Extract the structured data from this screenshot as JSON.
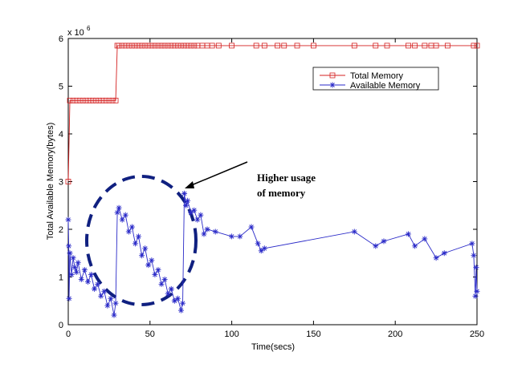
{
  "chart_data": {
    "type": "line",
    "xlabel": "Time(secs)",
    "ylabel": "Total Available Memory(bytes)",
    "y_multiplier": "x 10",
    "y_multiplier_exponent": "6",
    "annotation": [
      "Higher usage",
      "of memory"
    ],
    "xlim": [
      0,
      250
    ],
    "xticks": [
      0,
      50,
      100,
      150,
      200,
      250
    ],
    "ylim": [
      0,
      6
    ],
    "yticks": [
      0,
      1,
      2,
      3,
      4,
      5,
      6
    ],
    "grid": false,
    "legend": "upper right",
    "series": [
      {
        "name": "Total Memory",
        "color": "#d42020",
        "marker": "square",
        "x": [
          0,
          1,
          3,
          5,
          7,
          9,
          11,
          13,
          15,
          17,
          19,
          21,
          23,
          25,
          27,
          29,
          30,
          31,
          33,
          35,
          37,
          39,
          41,
          43,
          45,
          47,
          49,
          51,
          53,
          55,
          57,
          59,
          61,
          63,
          65,
          67,
          69,
          71,
          73,
          75,
          77,
          79,
          82,
          85,
          88,
          92,
          100,
          115,
          120,
          128,
          132,
          140,
          150,
          175,
          188,
          195,
          208,
          212,
          218,
          222,
          225,
          232,
          248,
          250
        ],
        "values": [
          3,
          4.7,
          4.7,
          4.7,
          4.7,
          4.7,
          4.7,
          4.7,
          4.7,
          4.7,
          4.7,
          4.7,
          4.7,
          4.7,
          4.7,
          4.7,
          5.85,
          5.85,
          5.85,
          5.85,
          5.85,
          5.85,
          5.85,
          5.85,
          5.85,
          5.85,
          5.85,
          5.85,
          5.85,
          5.85,
          5.85,
          5.85,
          5.85,
          5.85,
          5.85,
          5.85,
          5.85,
          5.85,
          5.85,
          5.85,
          5.85,
          5.85,
          5.85,
          5.85,
          5.85,
          5.85,
          5.85,
          5.85,
          5.85,
          5.85,
          5.85,
          5.85,
          5.85,
          5.85,
          5.85,
          5.85,
          5.85,
          5.85,
          5.85,
          5.85,
          5.85,
          5.85,
          5.85,
          5.85
        ]
      },
      {
        "name": "Available Memory",
        "color": "#2a2ac8",
        "marker": "asterisk",
        "x": [
          0,
          0.3,
          0.5,
          1,
          2,
          3,
          4,
          5,
          6,
          8,
          10,
          12,
          14,
          16,
          18,
          20,
          22,
          24,
          26,
          28,
          29,
          30,
          31,
          33,
          35,
          37,
          39,
          41,
          43,
          45,
          47,
          49,
          51,
          53,
          55,
          57,
          59,
          61,
          63,
          65,
          67,
          69,
          70,
          71,
          72,
          73,
          75,
          77,
          79,
          81,
          83,
          85,
          90,
          100,
          105,
          112,
          116,
          118,
          120,
          175,
          188,
          193,
          208,
          212,
          218,
          225,
          230,
          247,
          248,
          249,
          249.5,
          250
        ],
        "values": [
          2.2,
          1.65,
          0.55,
          1.5,
          1.05,
          1.4,
          1.2,
          1.1,
          1.3,
          0.95,
          1.15,
          0.9,
          1.05,
          0.75,
          0.85,
          0.6,
          0.7,
          0.4,
          0.55,
          0.2,
          0.45,
          2.35,
          2.45,
          2.2,
          2.3,
          1.95,
          2.05,
          1.7,
          1.85,
          1.45,
          1.6,
          1.25,
          1.35,
          1.05,
          1.15,
          0.85,
          0.95,
          0.65,
          0.75,
          0.5,
          0.55,
          0.3,
          0.45,
          2.75,
          2.5,
          2.6,
          2.35,
          2.4,
          2.2,
          2.3,
          1.9,
          2.0,
          1.95,
          1.85,
          1.85,
          2.05,
          1.7,
          1.55,
          1.6,
          1.95,
          1.65,
          1.75,
          1.9,
          1.65,
          1.8,
          1.4,
          1.5,
          1.7,
          1.45,
          0.6,
          1.2,
          0.7
        ]
      }
    ]
  }
}
